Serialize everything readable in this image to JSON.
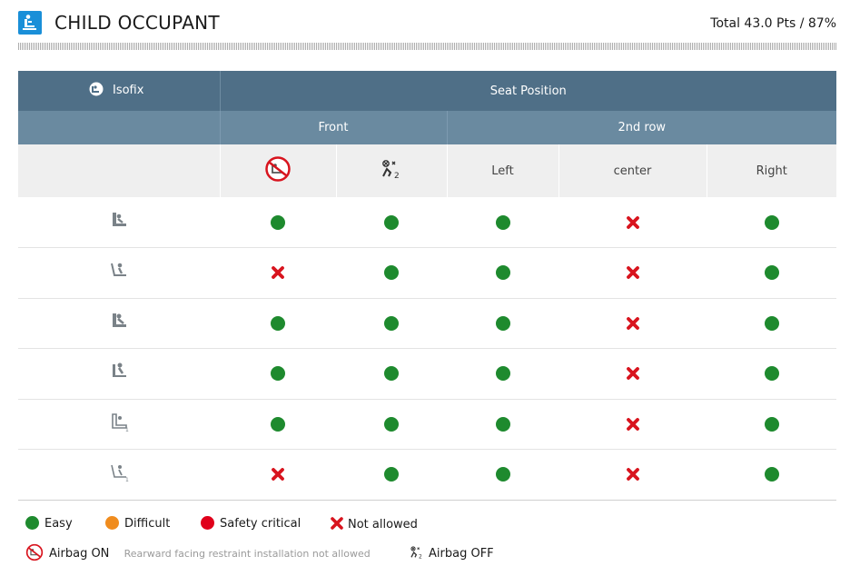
{
  "header": {
    "title": "CHILD OCCUPANT",
    "total": "Total 43.0 Pts / 87%"
  },
  "table": {
    "isofix_label": "Isofix",
    "seat_position_label": "Seat Position",
    "front_label": "Front",
    "second_row_label": "2nd row",
    "col_left": "Left",
    "col_center": "center",
    "col_right": "Right",
    "rows": [
      [
        "easy",
        "easy",
        "easy",
        "not_allowed",
        "easy"
      ],
      [
        "not_allowed",
        "easy",
        "easy",
        "not_allowed",
        "easy"
      ],
      [
        "easy",
        "easy",
        "easy",
        "not_allowed",
        "easy"
      ],
      [
        "easy",
        "easy",
        "easy",
        "not_allowed",
        "easy"
      ],
      [
        "easy",
        "easy",
        "easy",
        "not_allowed",
        "easy"
      ],
      [
        "not_allowed",
        "easy",
        "easy",
        "not_allowed",
        "easy"
      ]
    ]
  },
  "legend": {
    "easy": "Easy",
    "difficult": "Difficult",
    "safety_critical": "Safety critical",
    "not_allowed": "Not allowed",
    "airbag_on": "Airbag ON",
    "airbag_on_note": "Rearward facing restraint installation not allowed",
    "airbag_off": "Airbag OFF"
  },
  "colors": {
    "easy": "#1e8a2e",
    "difficult": "#f08c1e",
    "safety_critical": "#e0001b",
    "not_allowed": "#d8141e",
    "header": "#4f6f87",
    "subheader": "#6a8aa0"
  }
}
